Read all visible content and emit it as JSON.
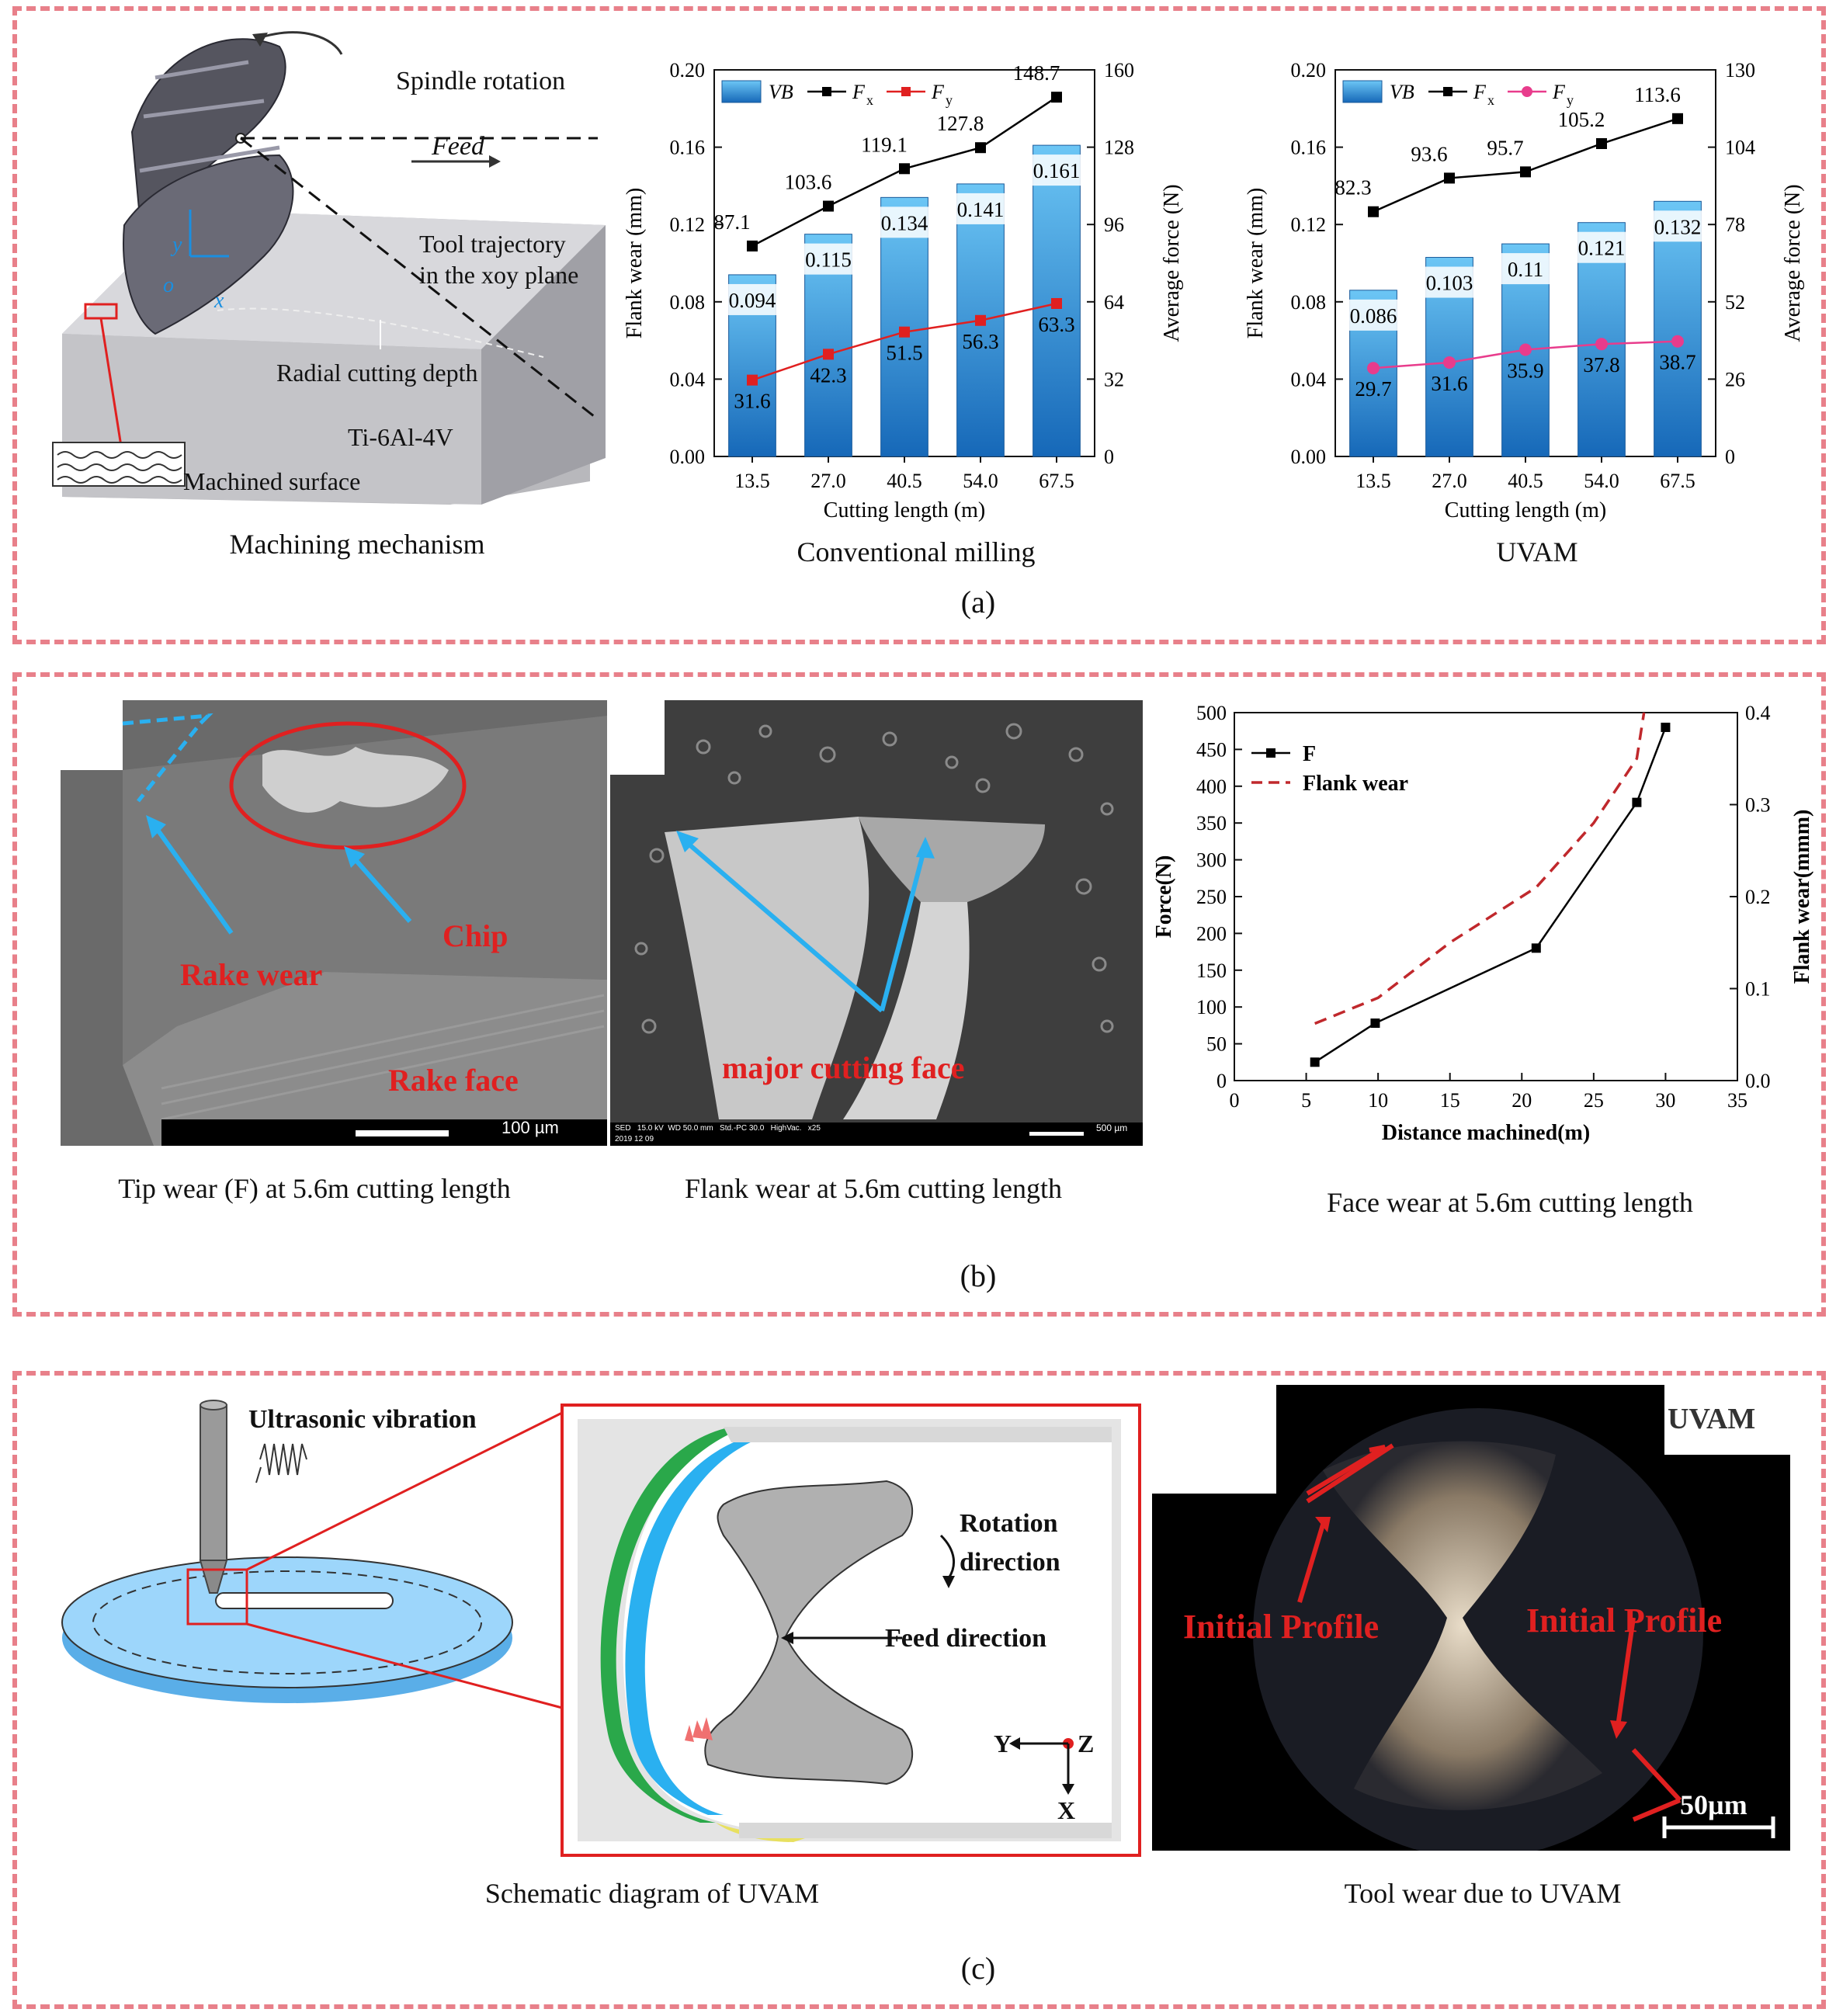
{
  "panel_a": {
    "label": "(a)",
    "mechanism": {
      "caption": "Machining mechanism",
      "spindle": "Spindle rotation",
      "feed": "Feed",
      "trajectory1": "Tool trajectory",
      "trajectory2": "in the xoy plane",
      "radial": "Radial cutting depth",
      "material": "Ti-6Al-4V",
      "surface": "Machined surface",
      "ax_y": "y",
      "ax_o": "o",
      "ax_x": "x"
    },
    "conv_caption": "Conventional milling",
    "uvam_caption": "UVAM"
  },
  "panel_b": {
    "label": "(b)",
    "tip": {
      "caption": "Tip wear (F) at 5.6m cutting length",
      "chip": "Chip",
      "rake_wear": "Rake wear",
      "rake_face": "Rake face",
      "scale": "100 µm"
    },
    "flank": {
      "caption": "Flank wear at 5.6m cutting length",
      "label": "major cutting face",
      "info": "SED   15.0 kV  WD 50.0 mm   Std.-PC 30.0   HighVac.   x25",
      "date": "2019 12 09",
      "scale": "500 µm"
    },
    "face_caption": "Face wear at 5.6m cutting length"
  },
  "panel_c": {
    "label": "(c)",
    "schematic": {
      "caption": "Schematic diagram of UVAM",
      "vibration": "Ultrasonic vibration",
      "rotation1": "Rotation",
      "rotation2": "direction",
      "feed": "Feed direction",
      "ax_y": "Y",
      "ax_z": "Z",
      "ax_x": "X"
    },
    "photo": {
      "caption": "Tool wear due to UVAM",
      "tag": "UVAM",
      "profile_left": "Initial Profile",
      "profile_right": "Initial Profile",
      "scale": "50µm"
    }
  },
  "chart_data": [
    {
      "type": "bar+line",
      "title": "",
      "categories": [
        "13.5",
        "27.0",
        "40.5",
        "54.0",
        "67.5"
      ],
      "xlabel": "Cutting length (m)",
      "ylabel_left": "Flank wear (mm)",
      "ylabel_right": "Average force (N)",
      "ylim_left": [
        0,
        0.2
      ],
      "yticks_left": [
        "0.00",
        "0.04",
        "0.08",
        "0.12",
        "0.16",
        "0.20"
      ],
      "ylim_right": [
        0,
        160
      ],
      "yticks_right": [
        "0",
        "32",
        "64",
        "96",
        "128",
        "160"
      ],
      "legend": {
        "placement": "top-left",
        "vb": "VB",
        "fx": "F",
        "fx_sub": "x",
        "fy": "F",
        "fy_sub": "y"
      },
      "series": [
        {
          "name": "VB",
          "axis": "left",
          "values": [
            0.094,
            0.115,
            0.134,
            0.141,
            0.161
          ],
          "labels": [
            "0.094",
            "0.115",
            "0.134",
            "0.141",
            "0.161"
          ]
        },
        {
          "name": "Fx",
          "axis": "right",
          "values": [
            87.1,
            103.6,
            119.1,
            127.8,
            148.7
          ],
          "labels": [
            "87.1",
            "103.6",
            "119.1",
            "127.8",
            "148.7"
          ]
        },
        {
          "name": "Fy",
          "axis": "right",
          "values": [
            31.6,
            42.3,
            51.5,
            56.3,
            63.3
          ],
          "labels": [
            "31.6",
            "42.3",
            "51.5",
            "56.3",
            "63.3"
          ]
        }
      ],
      "colors": {
        "bar": "#3a9fe0",
        "fx": "#000000",
        "fy": "#e02020",
        "fy_marker": "square"
      }
    },
    {
      "type": "bar+line",
      "title": "",
      "categories": [
        "13.5",
        "27.0",
        "40.5",
        "54.0",
        "67.5"
      ],
      "xlabel": "Cutting length (m)",
      "ylabel_left": "Flank wear (mm)",
      "ylabel_right": "Average force (N)",
      "ylim_left": [
        0,
        0.2
      ],
      "yticks_left": [
        "0.00",
        "0.04",
        "0.08",
        "0.12",
        "0.16",
        "0.20"
      ],
      "ylim_right": [
        0,
        130
      ],
      "yticks_right": [
        "0",
        "26",
        "52",
        "78",
        "104",
        "130"
      ],
      "legend": {
        "placement": "top-left",
        "vb": "VB",
        "fx": "F",
        "fx_sub": "x",
        "fy": "F",
        "fy_sub": "y"
      },
      "series": [
        {
          "name": "VB",
          "axis": "left",
          "values": [
            0.086,
            0.103,
            0.11,
            0.121,
            0.132
          ],
          "labels": [
            "0.086",
            "0.103",
            "0.11",
            "0.121",
            "0.132"
          ]
        },
        {
          "name": "Fx",
          "axis": "right",
          "values": [
            82.3,
            93.6,
            95.7,
            105.2,
            113.6
          ],
          "labels": [
            "82.3",
            "93.6",
            "95.7",
            "105.2",
            "113.6"
          ]
        },
        {
          "name": "Fy",
          "axis": "right",
          "values": [
            29.7,
            31.6,
            35.9,
            37.8,
            38.7
          ],
          "labels": [
            "29.7",
            "31.6",
            "35.9",
            "37.8",
            "38.7"
          ]
        }
      ],
      "colors": {
        "bar": "#3a9fe0",
        "fx": "#000000",
        "fy": "#e83c8c",
        "fy_marker": "circle"
      }
    },
    {
      "type": "line",
      "title": "",
      "xlabel": "Distance machined(m)",
      "ylabel_left": "Force(N)",
      "ylabel_right": "Flank wear(mmm)",
      "xlim": [
        0,
        35
      ],
      "xticks": [
        "0",
        "5",
        "10",
        "15",
        "20",
        "25",
        "30",
        "35"
      ],
      "ylim_left": [
        0,
        500
      ],
      "yticks_left": [
        "0",
        "50",
        "100",
        "150",
        "200",
        "250",
        "300",
        "350",
        "400",
        "450",
        "500"
      ],
      "ylim_right": [
        0,
        0.4
      ],
      "yticks_right": [
        "0.0",
        "0.1",
        "0.2",
        "0.3",
        "0.4"
      ],
      "legend": {
        "placement": "top-left",
        "f": "F",
        "flank": "Flank wear"
      },
      "series": [
        {
          "name": "F",
          "axis": "left",
          "x": [
            5.6,
            9.8,
            21,
            28,
            30
          ],
          "y": [
            25,
            78,
            180,
            378,
            480
          ]
        },
        {
          "name": "Flank wear",
          "axis": "right",
          "x": [
            5.6,
            10,
            15,
            21,
            25,
            28,
            28.5
          ],
          "y": [
            0.062,
            0.09,
            0.15,
            0.21,
            0.28,
            0.35,
            0.4
          ]
        }
      ],
      "colors": {
        "f": "#000000",
        "flank": "#c0282c"
      }
    }
  ]
}
